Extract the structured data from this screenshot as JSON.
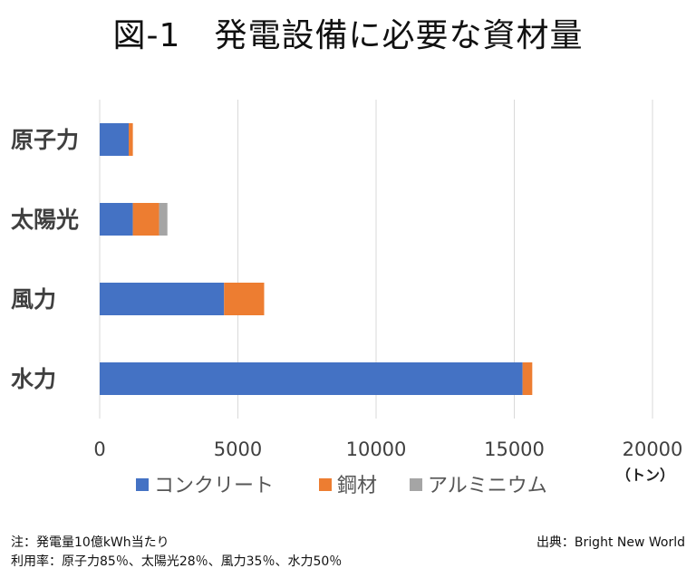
{
  "chart_data": {
    "type": "bar",
    "orientation": "horizontal",
    "stacked": true,
    "title": "図-1　発電設備に必要な資材量",
    "categories": [
      "原子力",
      "太陽光",
      "風力",
      "水力"
    ],
    "series": [
      {
        "name": "コンクリート",
        "color": "#4472C4",
        "values": [
          1050,
          1200,
          4500,
          15300
        ]
      },
      {
        "name": "鋼材",
        "color": "#ED7D31",
        "values": [
          150,
          950,
          1450,
          350
        ]
      },
      {
        "name": "アルミニウム",
        "color": "#A5A5A5",
        "values": [
          0,
          300,
          0,
          0
        ]
      }
    ],
    "xlim": [
      0,
      20000
    ],
    "xticks": [
      "0",
      "5000",
      "10000",
      "15000",
      "20000"
    ],
    "xunit": "（トン）",
    "grid": true,
    "legend_position": "bottom"
  },
  "notes": {
    "line1": "注：発電量10億kWh当たり",
    "line2": "利用率：原子力85％、太陽光28％、風力35％、水力50％",
    "source": "出典：Bright New World"
  }
}
